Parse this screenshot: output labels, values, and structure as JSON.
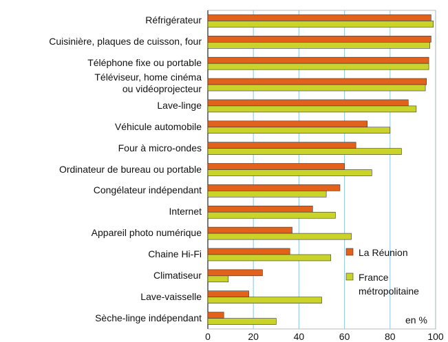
{
  "chart_data": {
    "type": "hbar",
    "categories": [
      "Réfrigérateur",
      "Cuisinière, plaques de cuisson, four",
      "Téléphone fixe ou portable",
      "Téléviseur, home cinéma\nou vidéoprojecteur",
      "Lave-linge",
      "Véhicule automobile",
      "Four à micro-ondes",
      "Ordinateur de bureau ou portable",
      "Congélateur indépendant",
      "Internet",
      "Appareil photo numérique",
      "Chaine Hi-Fi",
      "Climatiseur",
      "Lave-vaisselle",
      "Sèche-linge indépendant"
    ],
    "series": [
      {
        "name": "La Réunion",
        "color": "#e2621b",
        "values": [
          98,
          98,
          97,
          96,
          88,
          70,
          65,
          60,
          58,
          46,
          37,
          36,
          24,
          18,
          7
        ]
      },
      {
        "name": "France\nmétropolitaine",
        "color": "#c9d32a",
        "values": [
          99,
          97.5,
          97,
          95.5,
          91.5,
          80,
          85,
          72,
          52,
          56,
          63,
          54,
          9,
          50,
          30
        ]
      }
    ],
    "xlim": [
      0,
      100
    ],
    "xticks": [
      0,
      20,
      40,
      60,
      80,
      100
    ],
    "grid": true,
    "annotation": "en %",
    "legend": "lower right"
  }
}
